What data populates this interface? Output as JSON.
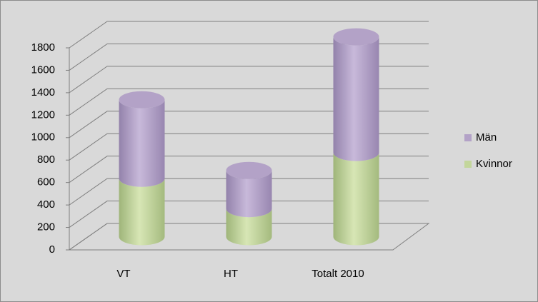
{
  "chart_data": {
    "type": "bar",
    "stacked": true,
    "categories": [
      "VT",
      "HT",
      "Totalt 2010"
    ],
    "series": [
      {
        "name": "Kvinnor",
        "color": "#c3d69b",
        "values": [
          520,
          250,
          750
        ]
      },
      {
        "name": "Män",
        "color": "#b3a2c7",
        "values": [
          700,
          340,
          1030
        ]
      }
    ],
    "ylim": [
      0,
      1800
    ],
    "yticks": [
      0,
      200,
      400,
      600,
      800,
      1000,
      1200,
      1400,
      1600,
      1800
    ],
    "grid": true,
    "legend": "right"
  }
}
